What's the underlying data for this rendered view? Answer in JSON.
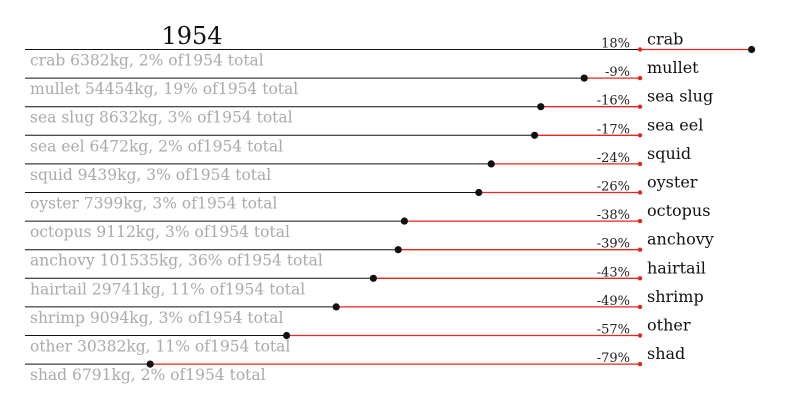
{
  "chart_data": {
    "type": "dot_change",
    "title": "1954",
    "categories": [
      "crab",
      "mullet",
      "sea slug",
      "sea eel",
      "squid",
      "oyster",
      "octopus",
      "anchovy",
      "hairtail",
      "shrimp",
      "other",
      "shad"
    ],
    "values": [
      18,
      -9,
      -16,
      -17,
      -24,
      -26,
      -38,
      -39,
      -43,
      -49,
      -57,
      -79
    ],
    "value_labels": [
      "18%",
      "-9%",
      "-16%",
      "-17%",
      "-24%",
      "-26%",
      "-38%",
      "-39%",
      "-43%",
      "-49%",
      "-57%",
      "-79%"
    ],
    "descriptions": [
      "crab 6382kg, 2% of1954 total",
      "mullet 54454kg, 19% of1954 total",
      "sea slug 8632kg, 3% of1954 total",
      "sea eel 6472kg, 2% of1954 total",
      "squid 9439kg, 3% of1954 total",
      "oyster 7399kg, 3% of1954 total",
      "octopus 9112kg, 3% of1954 total",
      "anchovy 101535kg, 36% of1954 total",
      "hairtail 29741kg, 11% of1954 total",
      "shrimp 9094kg, 3% of1954 total",
      "other 30382kg, 11% of1954 total",
      "shad 6791kg, 2% of1954 total"
    ],
    "color": "#e8251f",
    "base_color": "#111111"
  }
}
